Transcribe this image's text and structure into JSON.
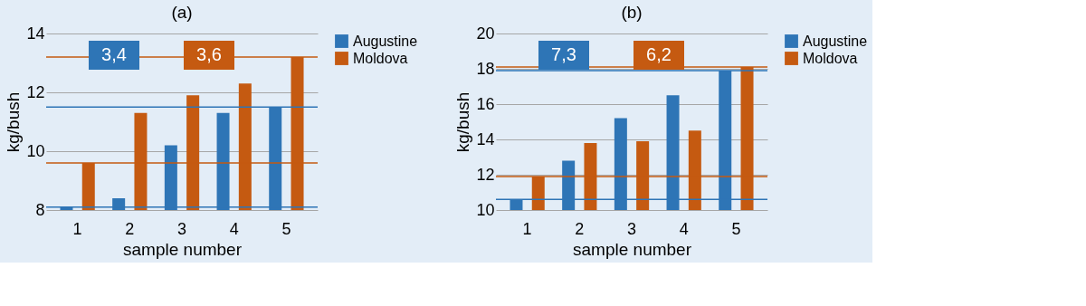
{
  "chart_data": [
    {
      "type": "bar",
      "title": "(a)",
      "xlabel": "sample number",
      "ylabel": "kg/bush",
      "categories": [
        "1",
        "2",
        "3",
        "4",
        "5"
      ],
      "series": [
        {
          "name": "Augustine",
          "color": "#2e75b6",
          "values": [
            8.1,
            8.4,
            10.2,
            11.3,
            11.5
          ]
        },
        {
          "name": "Moldova",
          "color": "#c55a11",
          "values": [
            9.6,
            11.3,
            11.9,
            12.3,
            13.2
          ]
        }
      ],
      "ylim": [
        8,
        14
      ],
      "yticks": [
        8,
        10,
        12,
        14
      ],
      "grid": "y",
      "legend": "right",
      "ref_lines": [
        {
          "axis": "y",
          "value": 11.5,
          "color": "#2e75b6"
        },
        {
          "axis": "y",
          "value": 8.1,
          "color": "#2e75b6"
        },
        {
          "axis": "y",
          "value": 9.6,
          "color": "#c55a11"
        },
        {
          "axis": "y",
          "value": 13.2,
          "color": "#c55a11"
        }
      ],
      "annotations": [
        "3,4",
        "3,6"
      ]
    },
    {
      "type": "bar",
      "title": "(b)",
      "xlabel": "sample number",
      "ylabel": "kg/bush",
      "categories": [
        "1",
        "2",
        "3",
        "4",
        "5"
      ],
      "series": [
        {
          "name": "Augustine",
          "color": "#2e75b6",
          "values": [
            10.6,
            12.8,
            15.2,
            16.5,
            17.9
          ]
        },
        {
          "name": "Moldova",
          "color": "#c55a11",
          "values": [
            11.9,
            13.8,
            13.9,
            14.5,
            18.1
          ]
        }
      ],
      "ylim": [
        10,
        20
      ],
      "yticks": [
        10,
        12,
        14,
        16,
        18,
        20
      ],
      "grid": "y",
      "legend": "right",
      "ref_lines": [
        {
          "axis": "y",
          "value": 17.9,
          "color": "#2e75b6"
        },
        {
          "axis": "y",
          "value": 10.6,
          "color": "#2e75b6"
        },
        {
          "axis": "y",
          "value": 11.9,
          "color": "#c55a11"
        },
        {
          "axis": "y",
          "value": 18.1,
          "color": "#c55a11"
        }
      ],
      "annotations": [
        "7,3",
        "6,2"
      ]
    }
  ]
}
